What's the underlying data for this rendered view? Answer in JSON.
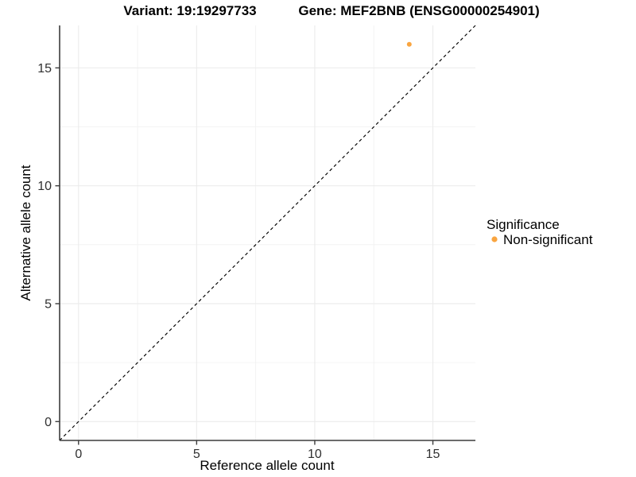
{
  "chart_data": {
    "type": "scatter",
    "title_variant": "Variant: 19:19297733",
    "title_gene": "Gene: MEF2BNB (ENSG00000254901)",
    "xlabel": "Reference allele count",
    "ylabel": "Alternative allele count",
    "xlim": [
      -0.8,
      16.8
    ],
    "ylim": [
      -0.8,
      16.8
    ],
    "xticks": [
      0,
      5,
      10,
      15
    ],
    "yticks": [
      0,
      5,
      10,
      15
    ],
    "x_minor_ticks": [
      2.5,
      7.5,
      12.5
    ],
    "y_minor_ticks": [
      2.5,
      7.5,
      12.5
    ],
    "grid": "major+minor",
    "points": [
      {
        "x": 14,
        "y": 16,
        "series": "Non-significant"
      }
    ],
    "series": [
      {
        "name": "Non-significant",
        "color": "#F9A540"
      }
    ],
    "reference_line": {
      "kind": "identity",
      "slope": 1,
      "intercept": 0,
      "style": "dashed",
      "color": "#000000"
    },
    "legend": {
      "position": "right",
      "title": "Significance",
      "items": [
        {
          "label": "Non-significant",
          "color": "#F9A540"
        }
      ]
    },
    "colors": {
      "background": "#FFFFFF",
      "axis": "#3C3C3C",
      "tick_label": "#303030",
      "grid_major": "#EBEBEB",
      "grid_minor": "#F1F1F1"
    }
  }
}
